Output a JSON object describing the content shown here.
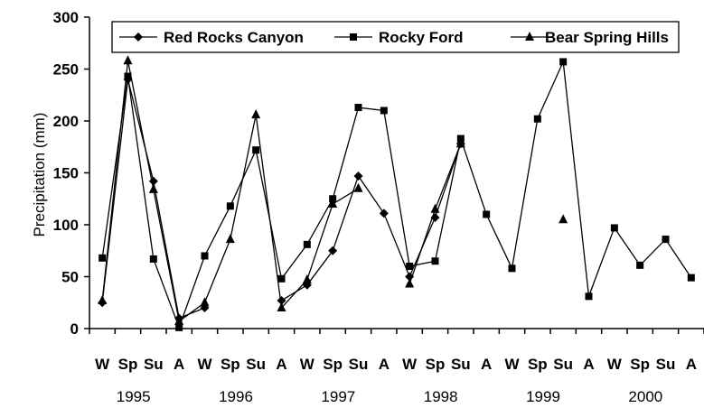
{
  "chart_data": {
    "type": "line",
    "ylabel": "Precipitation (mm)",
    "ylim": [
      0,
      300
    ],
    "yticks": [
      "0",
      "50",
      "100",
      "150",
      "200",
      "250",
      "300"
    ],
    "grid": false,
    "legend_position": "top",
    "categories": [
      "W",
      "Sp",
      "Su",
      "A",
      "W",
      "Sp",
      "Su",
      "A",
      "W",
      "Sp",
      "Su",
      "A",
      "W",
      "Sp",
      "Su",
      "A",
      "W",
      "Sp",
      "Su",
      "A",
      "W",
      "Sp",
      "Su",
      "A"
    ],
    "years": [
      "1995",
      "1996",
      "1997",
      "1998",
      "1999",
      "2000"
    ],
    "series": [
      {
        "name": "Red Rocks Canyon",
        "marker": "diamond",
        "values": [
          25,
          240,
          142,
          10,
          20,
          null,
          null,
          27,
          42,
          75,
          147,
          111,
          50,
          107,
          178,
          null,
          null,
          null,
          null,
          null,
          null,
          null,
          null,
          null
        ]
      },
      {
        "name": "Rocky Ford",
        "marker": "square",
        "values": [
          68,
          243,
          67,
          1,
          70,
          118,
          172,
          48,
          81,
          125,
          213,
          210,
          60,
          65,
          183,
          110,
          58,
          202,
          257,
          31,
          97,
          61,
          86,
          49
        ]
      },
      {
        "name": "Bear Spring Hills",
        "marker": "triangle",
        "values": [
          27,
          258,
          134,
          7,
          25,
          86,
          206,
          20,
          47,
          120,
          135,
          null,
          43,
          115,
          178,
          null,
          null,
          null,
          105,
          null,
          null,
          null,
          null,
          null
        ]
      }
    ]
  }
}
